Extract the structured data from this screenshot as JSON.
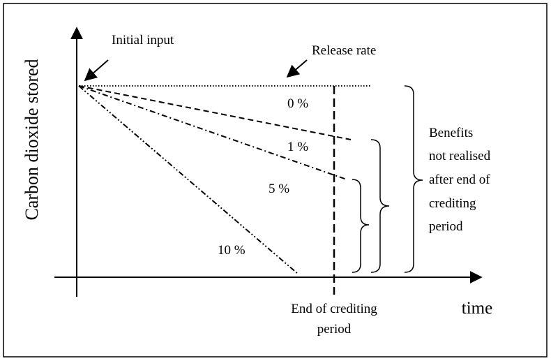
{
  "y_axis_label": "Carbon  dioxide stored",
  "x_axis_label": "time",
  "initial_input": "Initial input",
  "release_rate": "Release rate",
  "rates": [
    "0 %",
    "1 %",
    "5 %",
    "10 %"
  ],
  "end_of_period": [
    "End of crediting",
    "period"
  ],
  "benefits": [
    "Benefits",
    "not realised",
    "after end of",
    "crediting",
    "period"
  ]
}
